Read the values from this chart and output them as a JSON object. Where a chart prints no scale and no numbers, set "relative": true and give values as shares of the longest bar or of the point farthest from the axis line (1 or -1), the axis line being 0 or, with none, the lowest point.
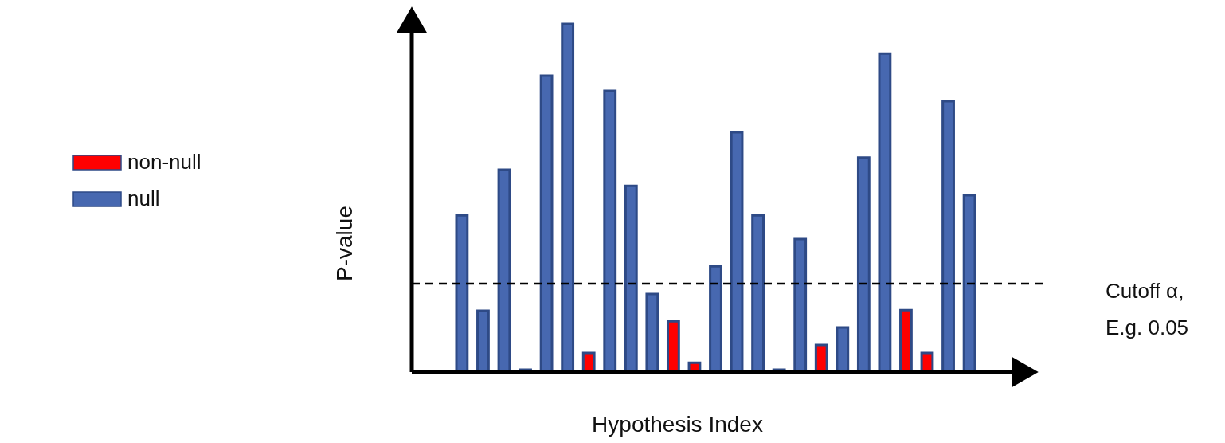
{
  "chart_data": {
    "type": "bar",
    "xlabel": "Hypothesis Index",
    "ylabel": "P-value",
    "relative": true,
    "legend": "left",
    "stacked": true,
    "categories": [
      null,
      null,
      null,
      null,
      null,
      null,
      null,
      null,
      null,
      null,
      null,
      null,
      null,
      null,
      null,
      null,
      null,
      null,
      null,
      null,
      null,
      null,
      null,
      null,
      null
    ],
    "series": [
      {
        "name": "non-null",
        "color": "#ff0000",
        "values": [
          null,
          null,
          null,
          null,
          null,
          null,
          0.055,
          null,
          null,
          null,
          0.146,
          0.027,
          null,
          null,
          null,
          null,
          null,
          0.078,
          null,
          null,
          null,
          0.178,
          0.055,
          null,
          null
        ]
      },
      {
        "name": "null",
        "color": "#4768b0",
        "values": [
          0.45,
          0.176,
          0.581,
          0.007,
          0.851,
          1,
          null,
          0.808,
          0.535,
          0.224,
          null,
          null,
          0.304,
          0.689,
          0.45,
          0.007,
          0.382,
          null,
          0.128,
          0.616,
          0.915,
          null,
          null,
          0.778,
          0.508
        ]
      }
    ],
    "ref_lines": [
      {
        "axis": "y",
        "value": 0.254,
        "label": "Cutoff α,\nE.g. 0.05",
        "line_style": "dashed",
        "color": "#000000"
      }
    ]
  }
}
